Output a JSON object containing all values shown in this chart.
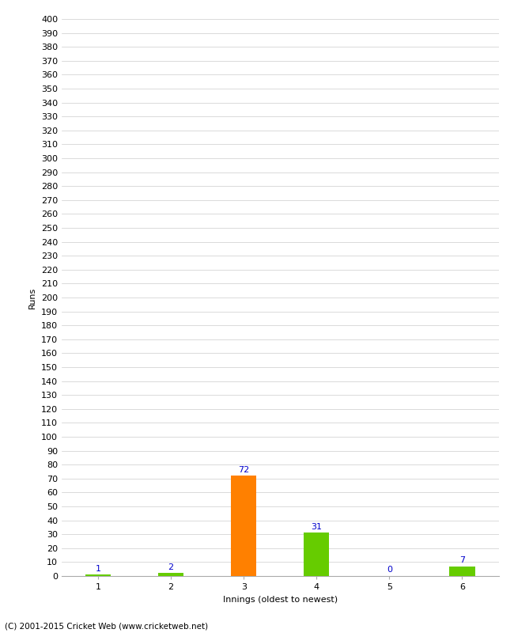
{
  "categories": [
    "1",
    "2",
    "3",
    "4",
    "5",
    "6"
  ],
  "values": [
    1,
    2,
    72,
    31,
    0,
    7
  ],
  "bar_colors": [
    "#66cc00",
    "#66cc00",
    "#ff8000",
    "#66cc00",
    "#66cc00",
    "#66cc00"
  ],
  "xlabel": "Innings (oldest to newest)",
  "ylabel": "Runs",
  "ylim": [
    0,
    400
  ],
  "background_color": "#ffffff",
  "grid_color": "#cccccc",
  "label_color": "#0000cc",
  "label_fontsize": 8,
  "axis_fontsize": 8,
  "footer": "(C) 2001-2015 Cricket Web (www.cricketweb.net)",
  "bar_width": 0.35
}
